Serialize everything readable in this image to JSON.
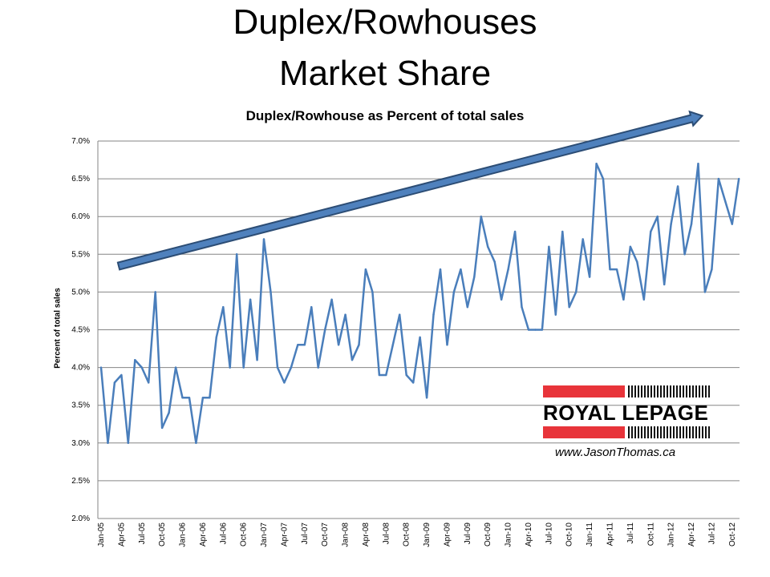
{
  "header": {
    "title_line1": "Duplex/Rowhouses",
    "title_line2": "Market Share"
  },
  "logo": {
    "brand": "ROYAL LEPAGE",
    "website": "www.JasonThomas.ca",
    "red": "#e8343a"
  },
  "chart_data": {
    "type": "line",
    "title": "Duplex/Rowhouse as Percent of total sales",
    "xlabel": "",
    "ylabel": "Percent of total sales",
    "ylim": [
      2.0,
      7.0
    ],
    "y_ticks": [
      "2.0%",
      "2.5%",
      "3.0%",
      "3.5%",
      "4.0%",
      "4.5%",
      "5.0%",
      "5.5%",
      "6.0%",
      "6.5%",
      "7.0%"
    ],
    "x_tick_labels": [
      "Jan-05",
      "Apr-05",
      "Jul-05",
      "Oct-05",
      "Jan-06",
      "Apr-06",
      "Jul-06",
      "Oct-06",
      "Jan-07",
      "Apr-07",
      "Jul-07",
      "Oct-07",
      "Jan-08",
      "Apr-08",
      "Jul-08",
      "Oct-08",
      "Jan-09",
      "Apr-09",
      "Jul-09",
      "Oct-09",
      "Jan-10",
      "Apr-10",
      "Jul-10",
      "Oct-10",
      "Jan-11",
      "Apr-11",
      "Jul-11",
      "Oct-11",
      "Jan-12",
      "Apr-12",
      "Jul-12",
      "Oct-12"
    ],
    "x_start": "Jan-05",
    "x_interval": "monthly",
    "grid": true,
    "series": [
      {
        "name": "Duplex/Rowhouse %",
        "color": "#4a7ebb",
        "values": [
          4.0,
          3.0,
          3.8,
          3.9,
          3.0,
          4.1,
          4.0,
          3.8,
          5.0,
          3.2,
          3.4,
          4.0,
          3.6,
          3.6,
          3.0,
          3.6,
          3.6,
          4.4,
          4.8,
          4.0,
          5.5,
          4.0,
          4.9,
          4.1,
          5.7,
          5.0,
          4.0,
          3.8,
          4.0,
          4.3,
          4.3,
          4.8,
          4.0,
          4.5,
          4.9,
          4.3,
          4.7,
          4.1,
          4.3,
          5.3,
          5.0,
          3.9,
          3.9,
          4.3,
          4.7,
          3.9,
          3.8,
          4.4,
          3.6,
          4.7,
          5.3,
          4.3,
          5.0,
          5.3,
          4.8,
          5.2,
          6.0,
          5.6,
          5.4,
          4.9,
          5.3,
          5.8,
          4.8,
          4.5,
          4.5,
          4.5,
          5.6,
          4.7,
          5.8,
          4.8,
          5.0,
          5.7,
          5.2,
          6.7,
          6.5,
          5.3,
          5.3,
          4.9,
          5.6,
          5.4,
          4.9,
          5.8,
          6.0,
          5.1,
          5.9,
          6.4,
          5.5,
          5.9,
          6.7,
          5.0,
          5.3,
          6.5,
          6.2,
          5.9,
          6.5
        ]
      }
    ],
    "annotations": [
      {
        "type": "trend-arrow",
        "direction": "upward"
      }
    ]
  }
}
